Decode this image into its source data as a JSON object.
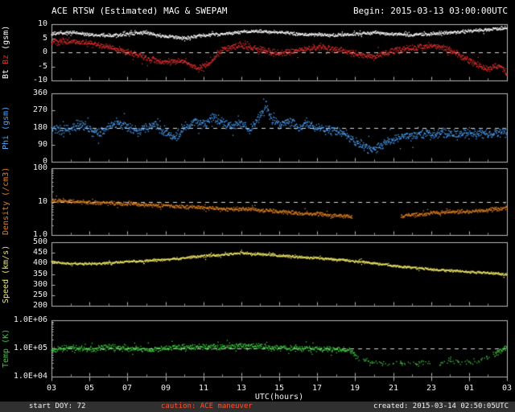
{
  "header": {
    "title": "ACE RTSW (Estimated) MAG & SWEPAM",
    "begin_label": "Begin: 2015-03-13 03:00:00UTC"
  },
  "footer": {
    "start_doy": "start DOY: 72",
    "caution": "caution: ACE maneuver",
    "created": "created: 2015-03-14 02:50:05UTC"
  },
  "colors": {
    "background": "#000000",
    "axis": "#b8b8b8",
    "dashed": "#d8d8d8",
    "caution": "#ff5030",
    "bt": "#ffffff",
    "bz": "#e83030",
    "phi": "#4da6ff",
    "density": "#e08020",
    "speed": "#f0e868",
    "temp": "#3ccc3c"
  },
  "chart_data": {
    "type": "scatter",
    "title": "ACE RTSW (Estimated) MAG & SWEPAM",
    "xlabel": "UTC(hours)",
    "x_range": [
      3,
      27
    ],
    "x_ticks": [
      3,
      5,
      7,
      9,
      11,
      13,
      15,
      17,
      19,
      21,
      23,
      25,
      27
    ],
    "x_tick_labels": [
      "03",
      "05",
      "07",
      "09",
      "11",
      "13",
      "15",
      "17",
      "19",
      "21",
      "23",
      "01",
      "03"
    ],
    "panels": [
      {
        "id": "mag",
        "ylabel_parts": [
          {
            "text": "Bt",
            "color": "#ffffff"
          },
          {
            "text": "Bz",
            "color": "#e83030"
          },
          {
            "text": "(gsm)",
            "color": "#ffffff"
          }
        ],
        "scale": "linear",
        "ylim": [
          -10,
          10
        ],
        "yticks": [
          10,
          5,
          0,
          -5,
          -10
        ],
        "ytick_labels": [
          "10",
          "5",
          "0",
          "-5",
          "-10"
        ],
        "dashed_at": 0,
        "series": [
          {
            "name": "Bt",
            "color": "#ffffff",
            "scatter": 0.7,
            "points": [
              [
                3,
                6.5
              ],
              [
                4,
                7
              ],
              [
                5,
                6.3
              ],
              [
                6,
                6
              ],
              [
                7,
                6.5
              ],
              [
                8,
                7
              ],
              [
                9,
                5.5
              ],
              [
                10,
                5
              ],
              [
                11,
                6
              ],
              [
                12,
                6.5
              ],
              [
                13,
                7.2
              ],
              [
                14,
                7.5
              ],
              [
                15,
                7
              ],
              [
                16,
                6.5
              ],
              [
                17,
                6.2
              ],
              [
                18,
                6
              ],
              [
                19,
                6.5
              ],
              [
                20,
                7
              ],
              [
                21,
                6.5
              ],
              [
                22,
                6.2
              ],
              [
                23,
                6.5
              ],
              [
                24,
                7
              ],
              [
                25,
                7.5
              ],
              [
                26,
                8
              ],
              [
                27,
                8.7
              ]
            ]
          },
          {
            "name": "Bz",
            "color": "#e83030",
            "scatter": 1.3,
            "points": [
              [
                3,
                3.5
              ],
              [
                4,
                4
              ],
              [
                5,
                3
              ],
              [
                6,
                2
              ],
              [
                7,
                0
              ],
              [
                8,
                -2
              ],
              [
                9,
                -3.5
              ],
              [
                10,
                -3
              ],
              [
                10.7,
                -6
              ],
              [
                11.3,
                -4
              ],
              [
                12,
                1
              ],
              [
                13,
                2.5
              ],
              [
                14,
                1
              ],
              [
                15,
                -0.5
              ],
              [
                16,
                0.5
              ],
              [
                17,
                2
              ],
              [
                18,
                1
              ],
              [
                19,
                -0.5
              ],
              [
                20,
                -1.5
              ],
              [
                21,
                0.5
              ],
              [
                22,
                1.5
              ],
              [
                23,
                2.5
              ],
              [
                24,
                1
              ],
              [
                25,
                -3
              ],
              [
                26,
                -6
              ],
              [
                26.6,
                -4.5
              ],
              [
                27,
                -7.5
              ]
            ]
          }
        ]
      },
      {
        "id": "phi",
        "ylabel_parts": [
          {
            "text": "Phi (gsm)",
            "color": "#4da6ff"
          }
        ],
        "scale": "linear",
        "ylim": [
          0,
          360
        ],
        "yticks": [
          360,
          270,
          180,
          90,
          0
        ],
        "ytick_labels": [
          "360",
          "270",
          "180",
          "90",
          "0"
        ],
        "dashed_at": 180,
        "series": [
          {
            "name": "Phi",
            "color": "#4da6ff",
            "scatter": 30,
            "points": [
              [
                3,
                185
              ],
              [
                3.5,
                160
              ],
              [
                4,
                175
              ],
              [
                4.5,
                200
              ],
              [
                5,
                170
              ],
              [
                5.5,
                150
              ],
              [
                6,
                180
              ],
              [
                6.5,
                210
              ],
              [
                7,
                190
              ],
              [
                7.5,
                160
              ],
              [
                8,
                175
              ],
              [
                8.5,
                200
              ],
              [
                9,
                150
              ],
              [
                9.5,
                130
              ],
              [
                10,
                170
              ],
              [
                10.5,
                210
              ],
              [
                11,
                190
              ],
              [
                11.5,
                230
              ],
              [
                12,
                210
              ],
              [
                12.5,
                180
              ],
              [
                13,
                200
              ],
              [
                13.5,
                170
              ],
              [
                14,
                240
              ],
              [
                14.3,
                300
              ],
              [
                14.6,
                220
              ],
              [
                15,
                190
              ],
              [
                15.5,
                210
              ],
              [
                16,
                180
              ],
              [
                16.5,
                200
              ],
              [
                17,
                185
              ],
              [
                17.5,
                170
              ],
              [
                18,
                160
              ],
              [
                18.5,
                150
              ],
              [
                19,
                100
              ],
              [
                19.5,
                75
              ],
              [
                20,
                70
              ],
              [
                20.5,
                90
              ],
              [
                21,
                120
              ],
              [
                21.5,
                140
              ],
              [
                22,
                130
              ],
              [
                22.5,
                150
              ],
              [
                23,
                145
              ],
              [
                23.5,
                155
              ],
              [
                24,
                150
              ],
              [
                25,
                145
              ],
              [
                26,
                150
              ],
              [
                27,
                160
              ]
            ]
          }
        ]
      },
      {
        "id": "density",
        "ylabel_parts": [
          {
            "text": "Density (/cm3)",
            "color": "#e08020"
          }
        ],
        "scale": "log",
        "ylim": [
          1,
          100
        ],
        "yticks": [
          100,
          10,
          1
        ],
        "ytick_labels": [
          "100",
          "10",
          "1.0"
        ],
        "dashed_at": 10,
        "series": [
          {
            "name": "Density",
            "color": "#e08020",
            "scatter": 0.07,
            "gaps": [
              [
                18.85,
                21.4
              ]
            ],
            "points": [
              [
                3,
                11
              ],
              [
                4,
                10
              ],
              [
                5,
                9.5
              ],
              [
                6,
                9
              ],
              [
                7,
                8.5
              ],
              [
                8,
                8
              ],
              [
                9,
                7.5
              ],
              [
                10,
                7
              ],
              [
                11,
                6.5
              ],
              [
                12,
                6
              ],
              [
                13,
                6
              ],
              [
                14,
                5.5
              ],
              [
                15,
                5
              ],
              [
                16,
                4.5
              ],
              [
                17,
                4.2
              ],
              [
                18,
                3.8
              ],
              [
                19,
                3.5
              ],
              [
                21,
                3.5
              ],
              [
                22,
                4
              ],
              [
                23,
                4.5
              ],
              [
                24,
                5
              ],
              [
                25,
                5
              ],
              [
                26,
                5.5
              ],
              [
                27,
                6.5
              ]
            ]
          }
        ]
      },
      {
        "id": "speed",
        "ylabel_parts": [
          {
            "text": "Speed (km/s)",
            "color": "#f0e868"
          }
        ],
        "scale": "linear",
        "ylim": [
          200,
          500
        ],
        "yticks": [
          500,
          450,
          400,
          350,
          300,
          250,
          200
        ],
        "ytick_labels": [
          "500",
          "450",
          "400",
          "350",
          "300",
          "250",
          "200"
        ],
        "dashed_at": null,
        "series": [
          {
            "name": "Speed",
            "color": "#f0e868",
            "scatter": 7,
            "points": [
              [
                3,
                405
              ],
              [
                4,
                400
              ],
              [
                5,
                398
              ],
              [
                6,
                402
              ],
              [
                7,
                408
              ],
              [
                8,
                412
              ],
              [
                9,
                418
              ],
              [
                10,
                425
              ],
              [
                11,
                435
              ],
              [
                12,
                440
              ],
              [
                13,
                450
              ],
              [
                14,
                443
              ],
              [
                15,
                438
              ],
              [
                16,
                430
              ],
              [
                17,
                425
              ],
              [
                18,
                418
              ],
              [
                19,
                410
              ],
              [
                20,
                400
              ],
              [
                21,
                390
              ],
              [
                22,
                380
              ],
              [
                23,
                372
              ],
              [
                24,
                365
              ],
              [
                25,
                360
              ],
              [
                26,
                355
              ],
              [
                27,
                348
              ]
            ]
          }
        ]
      },
      {
        "id": "temp",
        "ylabel_parts": [
          {
            "text": "Temp (K)",
            "color": "#3ccc3c"
          }
        ],
        "scale": "log",
        "ylim": [
          10000,
          1000000
        ],
        "yticks": [
          1000000,
          100000,
          10000
        ],
        "ytick_labels": [
          "1.0E+06",
          "1.0E+05",
          "1.0E+04"
        ],
        "dashed_at": 100000,
        "series": [
          {
            "name": "Temp",
            "color": "#3ccc3c",
            "scatter": 0.12,
            "sparse": [
              {
                "range": [
                  19.05,
                  26.35
                ],
                "keep": 0.3
              }
            ],
            "points": [
              [
                3,
                90000
              ],
              [
                4,
                105000
              ],
              [
                5,
                95000
              ],
              [
                6,
                110000
              ],
              [
                7,
                100000
              ],
              [
                8,
                90000
              ],
              [
                9,
                100000
              ],
              [
                10,
                110000
              ],
              [
                11,
                115000
              ],
              [
                12,
                110000
              ],
              [
                13,
                125000
              ],
              [
                14,
                115000
              ],
              [
                15,
                105000
              ],
              [
                16,
                100000
              ],
              [
                17,
                95000
              ],
              [
                18,
                90000
              ],
              [
                18.8,
                85000
              ],
              [
                19.2,
                40000
              ],
              [
                20,
                30000
              ],
              [
                21,
                28000
              ],
              [
                22,
                32000
              ],
              [
                23,
                28000
              ],
              [
                24,
                35000
              ],
              [
                25,
                32000
              ],
              [
                26,
                45000
              ],
              [
                26.5,
                70000
              ],
              [
                27,
                115000
              ]
            ]
          }
        ]
      }
    ]
  }
}
